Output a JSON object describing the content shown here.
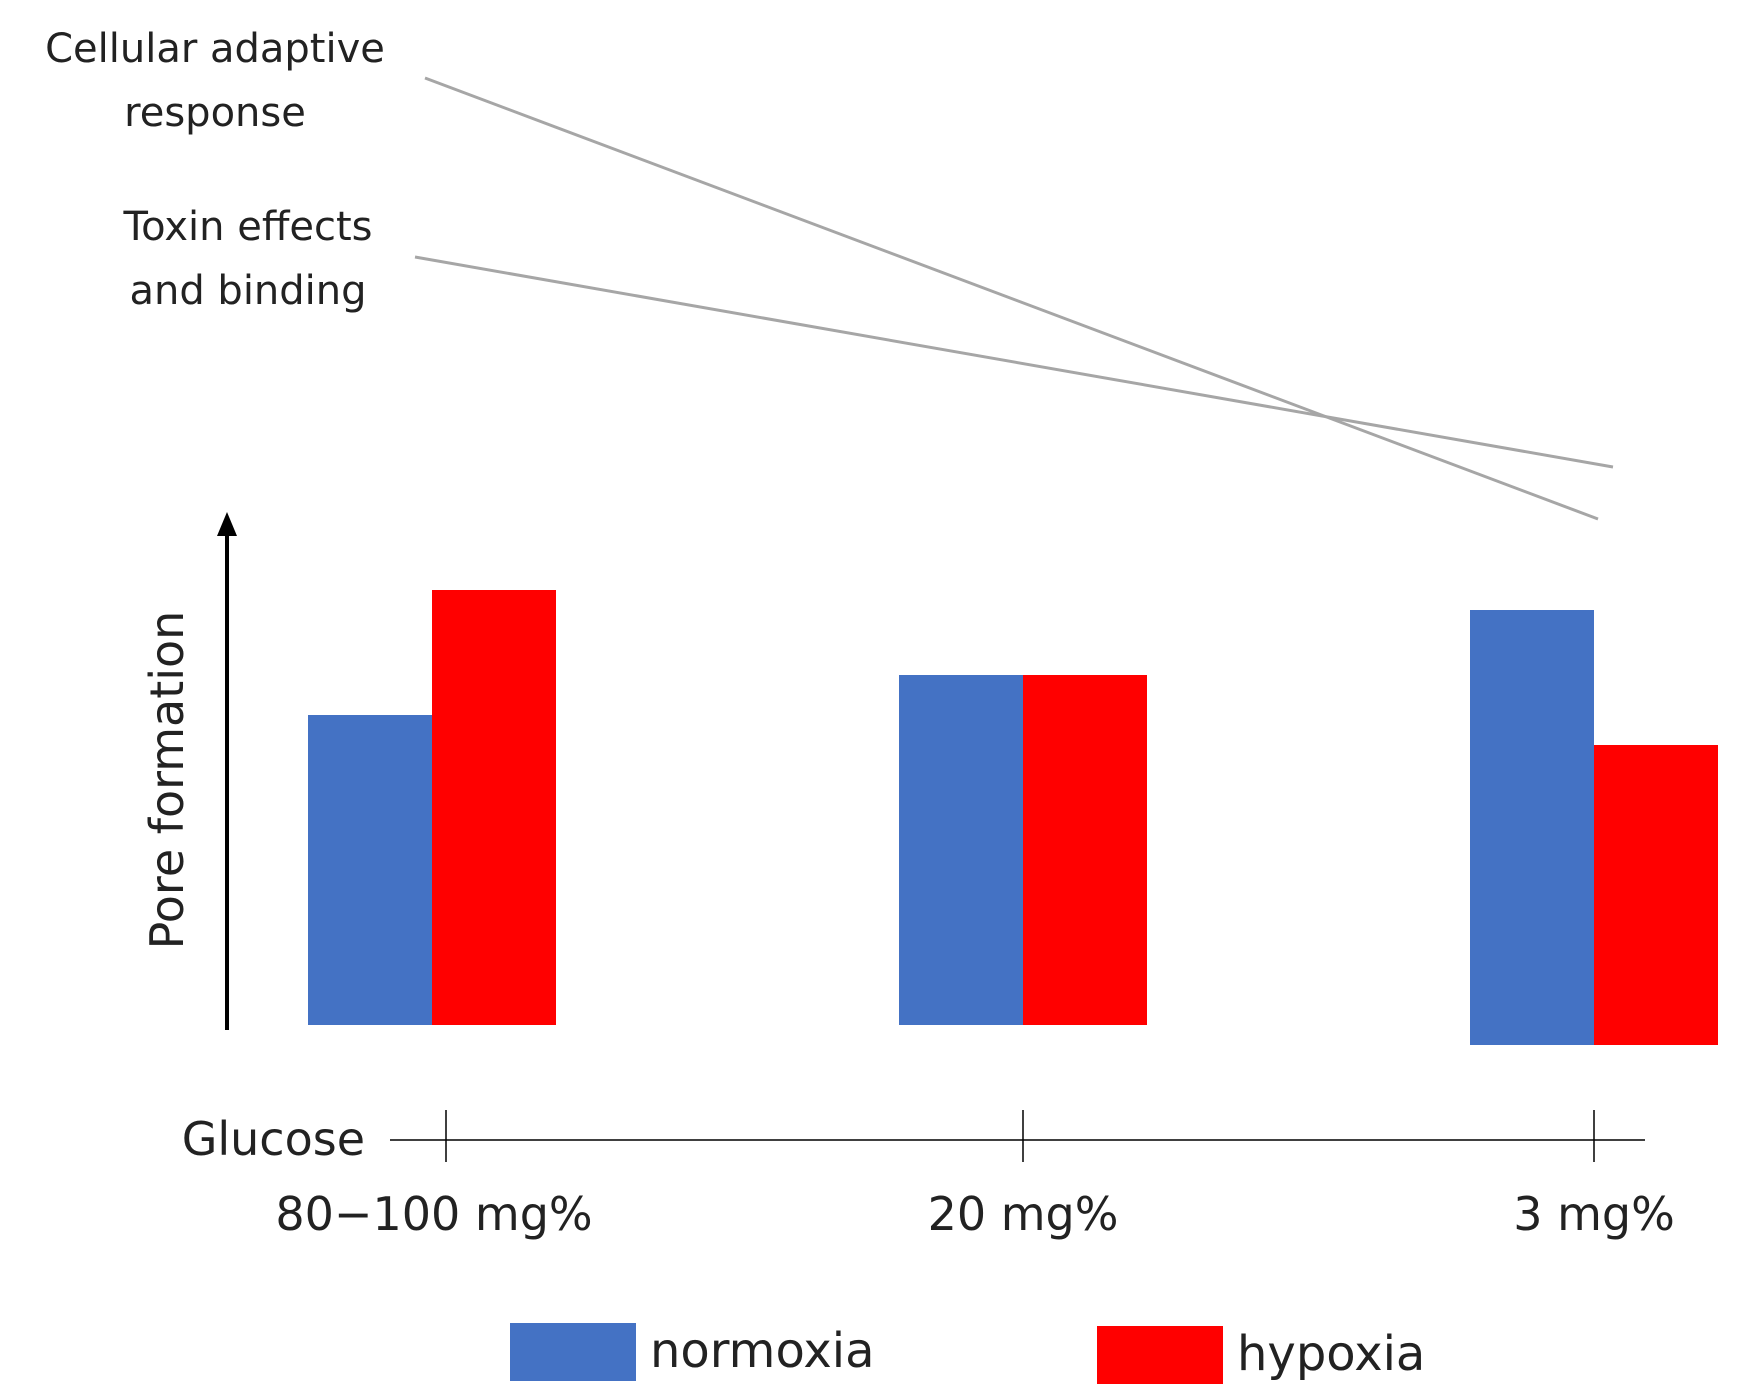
{
  "chart_data": {
    "type": "bar",
    "categories": [
      "80−100 mg%",
      "20 mg%",
      "3 mg%"
    ],
    "xlabel": "Glucose",
    "ylabel": "Pore formation",
    "ylim": [
      0,
      100
    ],
    "y_ticks_shown": false,
    "grid": false,
    "legend_position": "bottom-center",
    "series": [
      {
        "name": "normoxia",
        "color": "#4472C4",
        "values": [
          62,
          70,
          87
        ]
      },
      {
        "name": "hypoxia",
        "color": "#FF0000",
        "values": [
          87,
          70,
          60
        ]
      }
    ],
    "trend_lines": [
      {
        "label_lines": [
          "Cellular adaptive",
          "response"
        ],
        "direction": "decreasing",
        "color": "#A6A6A6"
      },
      {
        "label_lines": [
          "Toxin effects",
          "and binding"
        ],
        "direction": "decreasing",
        "color": "#A6A6A6"
      }
    ]
  }
}
